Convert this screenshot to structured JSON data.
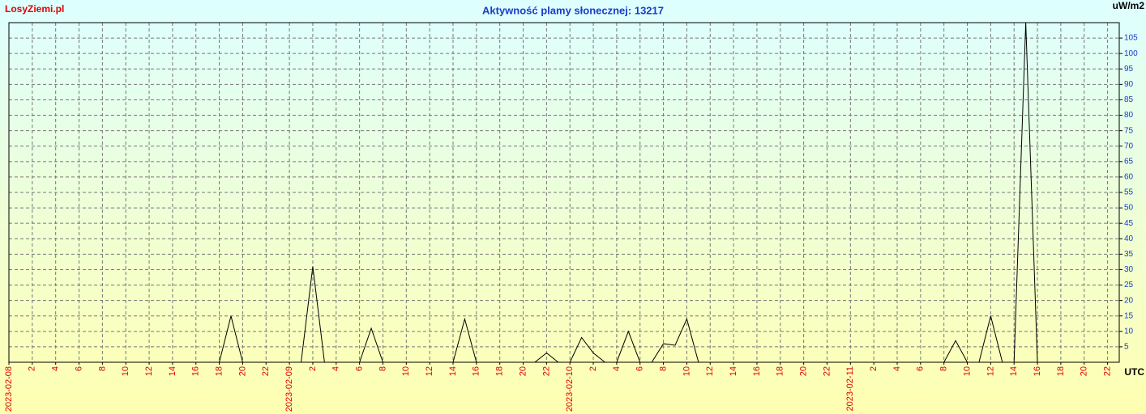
{
  "chart_data": {
    "type": "line",
    "title": "Aktywność plamy słonecznej: 13217",
    "site": "LosyZiemi.pl",
    "y_unit": "uW/m2",
    "x_label": "UTC",
    "x": [
      0,
      18,
      19,
      20,
      25,
      26,
      27,
      30,
      31,
      32,
      38,
      39,
      40,
      45,
      46,
      47,
      48,
      49,
      50,
      51,
      52,
      53,
      54,
      55,
      56,
      57,
      58,
      59,
      80,
      81,
      82,
      83,
      84,
      85,
      86,
      87,
      88
    ],
    "series": [
      {
        "color": "#000000",
        "values": [
          0,
          0,
          15,
          0,
          0,
          31,
          0,
          0,
          11,
          0,
          0,
          14,
          0,
          0,
          3,
          0,
          0,
          8,
          3,
          0,
          0,
          10,
          0,
          0,
          6,
          5.5,
          14,
          0,
          0,
          7,
          0,
          0,
          15,
          0,
          0,
          110,
          0
        ]
      }
    ],
    "xlim": [
      0,
      95
    ],
    "xticks": [
      {
        "value": 0,
        "label": "2023-02-08"
      },
      2,
      4,
      6,
      8,
      10,
      12,
      14,
      16,
      18,
      20,
      22,
      {
        "value": 24,
        "label": "2023-02-09"
      },
      {
        "value": 26,
        "label": "2"
      },
      {
        "value": 28,
        "label": "4"
      },
      {
        "value": 30,
        "label": "6"
      },
      {
        "value": 32,
        "label": "8"
      },
      {
        "value": 34,
        "label": "10"
      },
      {
        "value": 36,
        "label": "12"
      },
      {
        "value": 38,
        "label": "14"
      },
      {
        "value": 40,
        "label": "16"
      },
      {
        "value": 42,
        "label": "18"
      },
      {
        "value": 44,
        "label": "20"
      },
      {
        "value": 46,
        "label": "22"
      },
      {
        "value": 48,
        "label": "2023-02-10"
      },
      {
        "value": 50,
        "label": "2"
      },
      {
        "value": 52,
        "label": "4"
      },
      {
        "value": 54,
        "label": "6"
      },
      {
        "value": 56,
        "label": "8"
      },
      {
        "value": 58,
        "label": "10"
      },
      {
        "value": 60,
        "label": "12"
      },
      {
        "value": 62,
        "label": "14"
      },
      {
        "value": 64,
        "label": "16"
      },
      {
        "value": 66,
        "label": "18"
      },
      {
        "value": 68,
        "label": "20"
      },
      {
        "value": 70,
        "label": "22"
      },
      {
        "value": 72,
        "label": "2023-02-11"
      },
      {
        "value": 74,
        "label": "2"
      },
      {
        "value": 76,
        "label": "4"
      },
      {
        "value": 78,
        "label": "6"
      },
      {
        "value": 80,
        "label": "8"
      },
      {
        "value": 82,
        "label": "10"
      },
      {
        "value": 84,
        "label": "12"
      },
      {
        "value": 86,
        "label": "14"
      },
      {
        "value": 88,
        "label": "16"
      },
      {
        "value": 90,
        "label": "18"
      },
      {
        "value": 92,
        "label": "20"
      },
      {
        "value": 94,
        "label": "22"
      }
    ],
    "ylim": [
      0,
      110
    ],
    "yticks": [
      5,
      10,
      15,
      20,
      25,
      30,
      35,
      40,
      45,
      50,
      55,
      60,
      65,
      70,
      75,
      80,
      85,
      90,
      95,
      100,
      105
    ],
    "grid": true
  }
}
